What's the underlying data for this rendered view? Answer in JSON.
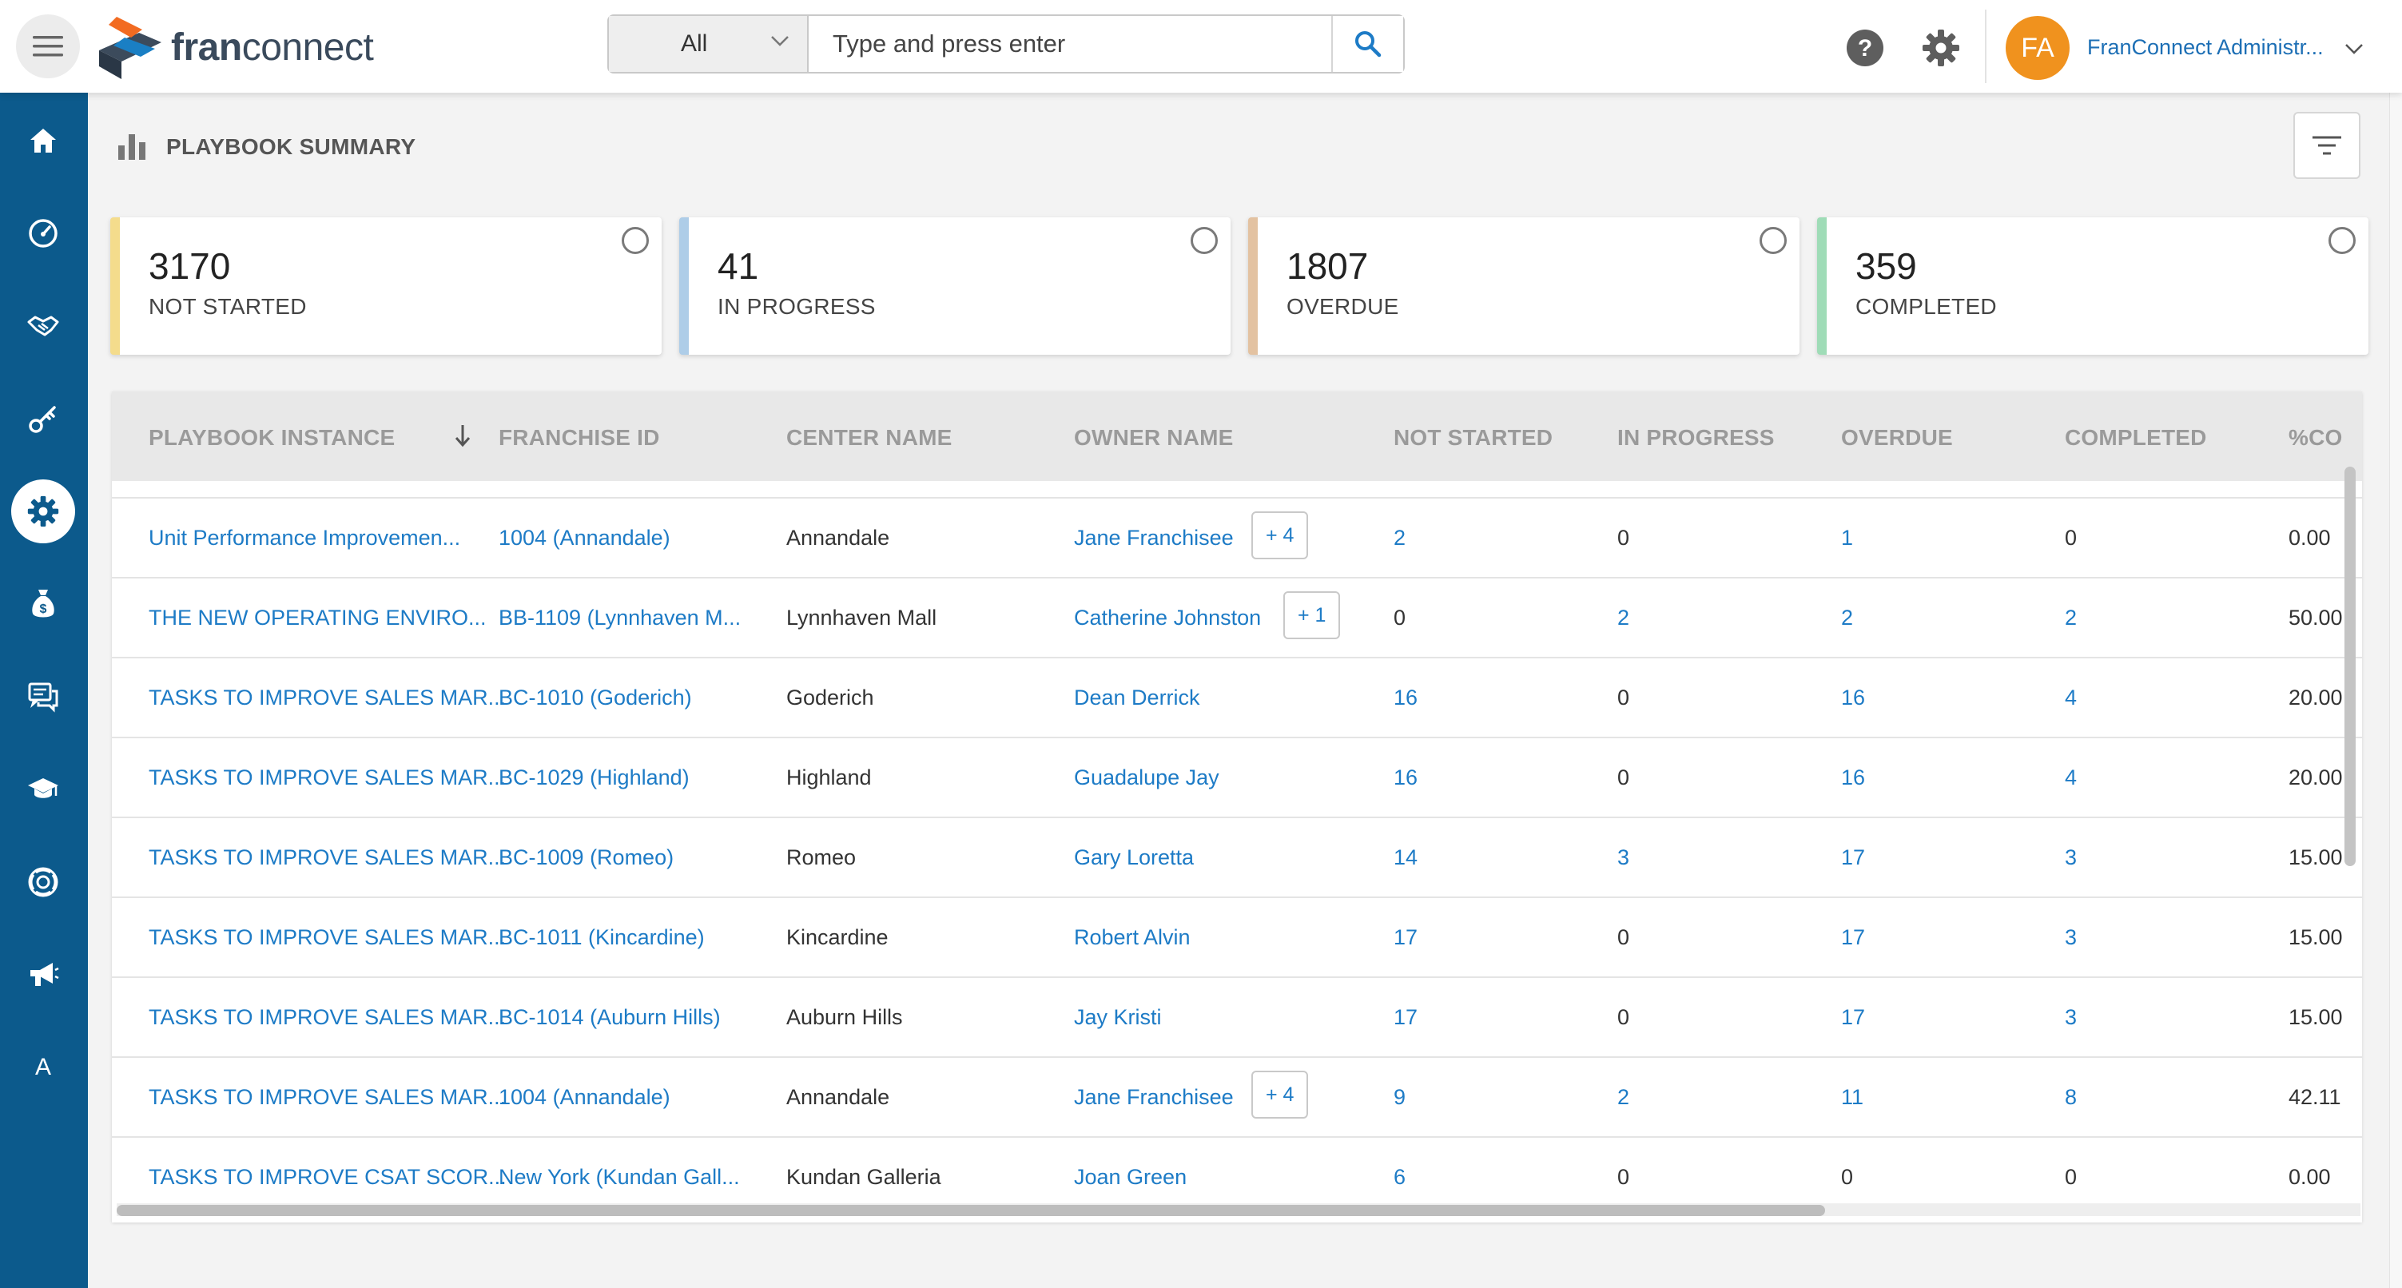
{
  "header": {
    "logo_text_bold": "fran",
    "logo_text_rest": "connect",
    "search_scope": "All",
    "search_placeholder": "Type and press enter",
    "avatar_initials": "FA",
    "user_name": "FranConnect Administr..."
  },
  "sidebar": {
    "items": [
      {
        "icon": "home-icon"
      },
      {
        "icon": "dashboard-gauge-icon"
      },
      {
        "icon": "handshake-icon"
      },
      {
        "icon": "key-icon"
      },
      {
        "icon": "settings-gear-icon",
        "active": true
      },
      {
        "icon": "money-bag-icon"
      },
      {
        "icon": "chat-icon"
      },
      {
        "icon": "graduation-cap-icon"
      },
      {
        "icon": "lifebuoy-icon"
      },
      {
        "icon": "megaphone-icon"
      },
      {
        "icon": "letter-a-icon",
        "letter": "A"
      }
    ]
  },
  "page": {
    "title": "PLAYBOOK SUMMARY"
  },
  "summary_cards": [
    {
      "value": "3170",
      "label": "NOT STARTED",
      "accent": "#f4dc8c"
    },
    {
      "value": "41",
      "label": "IN PROGRESS",
      "accent": "#aecde8"
    },
    {
      "value": "1807",
      "label": "OVERDUE",
      "accent": "#e3c2a1"
    },
    {
      "value": "359",
      "label": "COMPLETED",
      "accent": "#9fdcb7"
    }
  ],
  "table": {
    "columns": [
      "PLAYBOOK INSTANCE",
      "FRANCHISE ID",
      "CENTER NAME",
      "OWNER NAME",
      "NOT STARTED",
      "IN PROGRESS",
      "OVERDUE",
      "COMPLETED",
      "%CO"
    ],
    "rows": [
      {
        "instance": "Unit Performance Improvemen...",
        "franchise_id": "1004 (Annandale)",
        "center": "Annandale",
        "owner": "Jane Franchisee",
        "extra": "+ 4",
        "not_started": "2",
        "in_progress": "0",
        "overdue": "1",
        "completed": "0",
        "percent": "0.00"
      },
      {
        "instance": "THE NEW OPERATING ENVIRO...",
        "franchise_id": "BB-1109 (Lynnhaven M...",
        "center": "Lynnhaven Mall",
        "owner": "Catherine Johnston",
        "extra": "+ 1",
        "not_started": "0",
        "in_progress": "2",
        "overdue": "2",
        "completed": "2",
        "percent": "50.00"
      },
      {
        "instance": "TASKS TO IMPROVE SALES MAR...",
        "franchise_id": "BC-1010 (Goderich)",
        "center": "Goderich",
        "owner": "Dean Derrick",
        "extra": "",
        "not_started": "16",
        "in_progress": "0",
        "overdue": "16",
        "completed": "4",
        "percent": "20.00"
      },
      {
        "instance": "TASKS TO IMPROVE SALES MAR...",
        "franchise_id": "BC-1029 (Highland)",
        "center": "Highland",
        "owner": "Guadalupe Jay",
        "extra": "",
        "not_started": "16",
        "in_progress": "0",
        "overdue": "16",
        "completed": "4",
        "percent": "20.00"
      },
      {
        "instance": "TASKS TO IMPROVE SALES MAR...",
        "franchise_id": "BC-1009 (Romeo)",
        "center": "Romeo",
        "owner": "Gary Loretta",
        "extra": "",
        "not_started": "14",
        "in_progress": "3",
        "overdue": "17",
        "completed": "3",
        "percent": "15.00"
      },
      {
        "instance": "TASKS TO IMPROVE SALES MAR...",
        "franchise_id": "BC-1011 (Kincardine)",
        "center": "Kincardine",
        "owner": "Robert Alvin",
        "extra": "",
        "not_started": "17",
        "in_progress": "0",
        "overdue": "17",
        "completed": "3",
        "percent": "15.00"
      },
      {
        "instance": "TASKS TO IMPROVE SALES MAR...",
        "franchise_id": "BC-1014 (Auburn Hills)",
        "center": "Auburn Hills",
        "owner": "Jay Kristi",
        "extra": "",
        "not_started": "17",
        "in_progress": "0",
        "overdue": "17",
        "completed": "3",
        "percent": "15.00"
      },
      {
        "instance": "TASKS TO IMPROVE SALES MAR...",
        "franchise_id": "1004 (Annandale)",
        "center": "Annandale",
        "owner": "Jane Franchisee",
        "extra": "+ 4",
        "not_started": "9",
        "in_progress": "2",
        "overdue": "11",
        "completed": "8",
        "percent": "42.11"
      },
      {
        "instance": "TASKS TO IMPROVE CSAT SCOR...",
        "franchise_id": "New York (Kundan Gall...",
        "center": "Kundan Galleria",
        "owner": "Joan Green",
        "extra": "",
        "not_started": "6",
        "in_progress": "0",
        "overdue": "0",
        "completed": "0",
        "percent": "0.00"
      }
    ]
  }
}
